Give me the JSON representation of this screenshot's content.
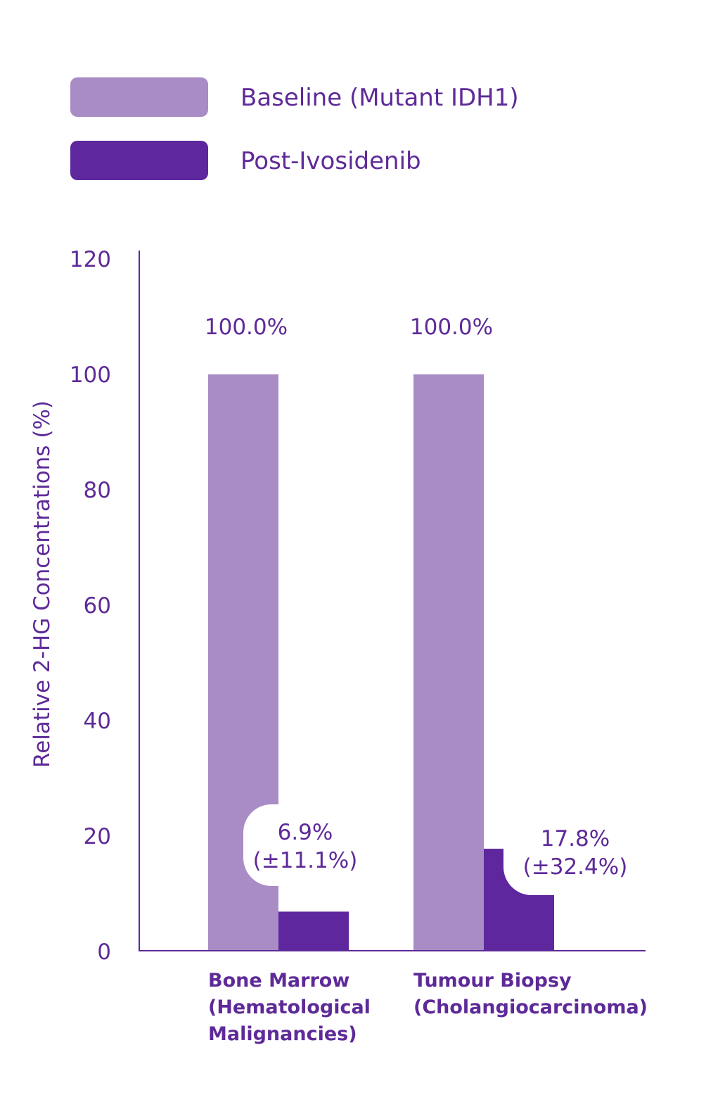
{
  "colors": {
    "baseline": "#a98cc6",
    "post": "#5e279d",
    "text": "#5e2a98",
    "axis": "#5e2a98"
  },
  "chart_data": {
    "type": "bar",
    "categories": [
      [
        "Bone Marrow",
        "(Hematological",
        "Malignancies)"
      ],
      [
        "Tumour Biopsy",
        "(Cholangiocarcinoma)"
      ]
    ],
    "series": [
      {
        "name": "Baseline (Mutant IDH1)",
        "values": [
          100,
          100
        ],
        "labels": [
          "100.0%",
          "100.0%"
        ]
      },
      {
        "name": "Post-Ivosidenib",
        "values": [
          6.9,
          17.8
        ],
        "labels": [
          [
            "6.9%",
            "(±11.1%)"
          ],
          [
            "17.8%",
            "(±32.4%)"
          ]
        ]
      }
    ],
    "ylabel": "Relative 2-HG Concentrations (%)",
    "ylim": [
      0,
      120
    ],
    "yticks": [
      "0",
      "20",
      "40",
      "60",
      "80",
      "100",
      "120"
    ],
    "grid": false,
    "legend": "top-left"
  }
}
